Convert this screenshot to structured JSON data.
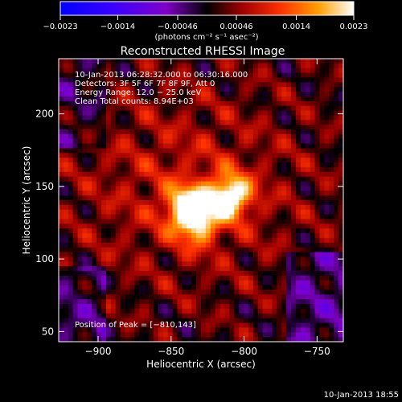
{
  "chart_data": {
    "type": "heatmap",
    "title": "Reconstructed RHESSI Image",
    "xlabel": "Heliocentric X (arcsec)",
    "ylabel": "Heliocentric Y (arcsec)",
    "xlim": [
      -927,
      -732
    ],
    "ylim": [
      43,
      238
    ],
    "x_ticks": [
      {
        "value": -900,
        "label": "−900"
      },
      {
        "value": -850,
        "label": "−850"
      },
      {
        "value": -800,
        "label": "−800"
      },
      {
        "value": -750,
        "label": "−750"
      }
    ],
    "y_ticks": [
      {
        "value": 50,
        "label": "50"
      },
      {
        "value": 100,
        "label": "100"
      },
      {
        "value": 150,
        "label": "150"
      },
      {
        "value": 200,
        "label": "200"
      }
    ],
    "colorbar": {
      "min": -0.0023,
      "max": 0.0023,
      "unit": "(photons cm⁻² s⁻¹ asec⁻²)",
      "ticks": [
        {
          "value": -0.0023,
          "label": "−0.0023"
        },
        {
          "value": -0.0014,
          "label": "−0.0014"
        },
        {
          "value": -0.00046,
          "label": "−0.00046"
        },
        {
          "value": 0.00046,
          "label": "0.00046"
        },
        {
          "value": 0.0014,
          "label": "0.0014"
        },
        {
          "value": 0.0023,
          "label": "0.0023"
        }
      ]
    },
    "annotations": [
      "10-Jan-2013 06:28:32.000 to 06:30:16.000",
      "Detectors: 3F 5F 6F 7F 8F 9F, Att 0",
      "Energy Range: 12.0 − 25.0 keV",
      "Clean     Total counts: 8.94E+03"
    ],
    "peak_label": "Position of Peak = [−810,143]",
    "sources": [
      {
        "x": -810,
        "y": 143,
        "amplitude": 0.0023
      },
      {
        "x": -838,
        "y": 136,
        "amplitude": 0.0021
      },
      {
        "x": -832,
        "y": 123,
        "amplitude": 0.0013
      }
    ]
  },
  "footer_timestamp": "10-Jan-2013 18:55"
}
